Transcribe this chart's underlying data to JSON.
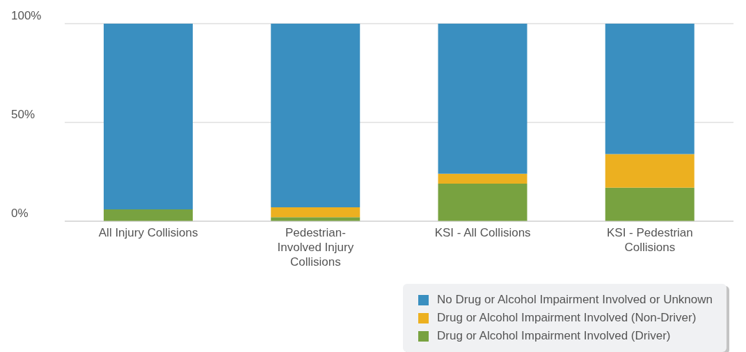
{
  "chart_data": {
    "type": "bar",
    "stacked": true,
    "categories": [
      "All Injury Collisions",
      "Pedestrian-Involved Injury Collisions",
      "KSI - All Collisions",
      "KSI - Pedestrian Collisions"
    ],
    "series": [
      {
        "name": "Drug or Alcohol Impairment Involved (Driver)",
        "color": "#78a240",
        "values": [
          6,
          2,
          19,
          17
        ]
      },
      {
        "name": "Drug or Alcohol Impairment Involved (Non-Driver)",
        "color": "#ecb020",
        "values": [
          0,
          5,
          5,
          17
        ]
      },
      {
        "name": "No Drug or Alcohol Impairment Involved or Unknown",
        "color": "#3a8fc0",
        "values": [
          94,
          93,
          76,
          66
        ]
      }
    ],
    "ylim": [
      0,
      100
    ],
    "yticks": [
      {
        "value": 0,
        "label": "0%"
      },
      {
        "value": 50,
        "label": "50%"
      },
      {
        "value": 100,
        "label": "100%"
      }
    ],
    "grid": "y",
    "legend": "bottom right"
  }
}
